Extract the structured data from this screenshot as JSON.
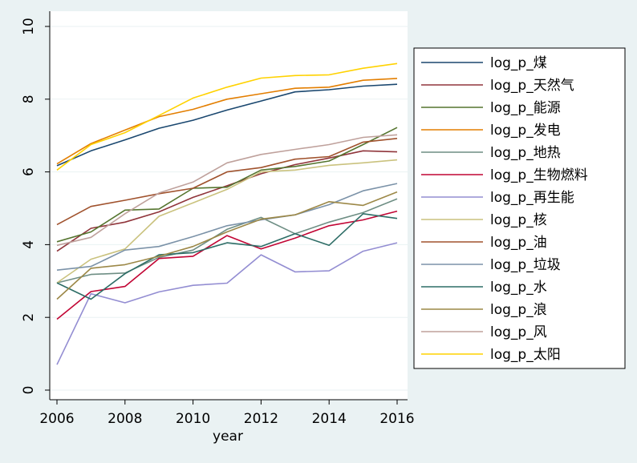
{
  "chart_data": {
    "type": "line",
    "xlabel": "year",
    "ylabel": "",
    "xlim": [
      2006,
      2016
    ],
    "ylim": [
      0,
      10
    ],
    "x_ticks": [
      2006,
      2008,
      2010,
      2012,
      2014,
      2016
    ],
    "y_ticks": [
      0,
      2,
      4,
      6,
      8,
      10
    ],
    "grid": "horizontal",
    "legend_placement": "right",
    "x": [
      2006,
      2007,
      2008,
      2009,
      2010,
      2011,
      2012,
      2013,
      2014,
      2015,
      2016
    ],
    "series": [
      {
        "name": "log_p_煤",
        "color": "#1a476f",
        "values": [
          6.17,
          6.58,
          6.88,
          7.2,
          7.42,
          7.7,
          7.95,
          8.2,
          8.26,
          8.36,
          8.41
        ]
      },
      {
        "name": "log_p_天然气",
        "color": "#90353b",
        "values": [
          3.82,
          4.45,
          4.62,
          4.9,
          5.3,
          5.62,
          5.95,
          6.2,
          6.38,
          6.58,
          6.55
        ]
      },
      {
        "name": "log_p_能源",
        "color": "#55752f",
        "values": [
          4.08,
          4.35,
          4.95,
          4.98,
          5.55,
          5.58,
          6.05,
          6.15,
          6.3,
          6.75,
          7.22
        ]
      },
      {
        "name": "log_p_发电",
        "color": "#e37e00",
        "values": [
          6.22,
          6.78,
          7.15,
          7.52,
          7.72,
          8.0,
          8.15,
          8.3,
          8.33,
          8.52,
          8.57
        ]
      },
      {
        "name": "log_p_地热",
        "color": "#6e8e84",
        "values": [
          2.95,
          3.18,
          3.22,
          3.65,
          3.85,
          4.42,
          4.75,
          4.3,
          4.62,
          4.88,
          5.26
        ]
      },
      {
        "name": "log_p_生物燃料",
        "color": "#c10534",
        "values": [
          1.95,
          2.71,
          2.85,
          3.62,
          3.68,
          4.25,
          3.88,
          4.18,
          4.52,
          4.68,
          4.92
        ]
      },
      {
        "name": "log_p_再生能",
        "color": "#938dd2",
        "values": [
          0.7,
          2.65,
          2.4,
          2.7,
          2.88,
          2.94,
          3.72,
          3.25,
          3.28,
          3.82,
          4.05
        ]
      },
      {
        "name": "log_p_核",
        "color": "#cac27e",
        "values": [
          2.95,
          3.6,
          3.88,
          4.78,
          5.15,
          5.52,
          6.0,
          6.05,
          6.18,
          6.25,
          6.33
        ]
      },
      {
        "name": "log_p_油",
        "color": "#a0522d",
        "values": [
          4.55,
          5.05,
          5.22,
          5.4,
          5.55,
          6.0,
          6.12,
          6.35,
          6.42,
          6.82,
          6.92
        ]
      },
      {
        "name": "log_p_垃圾",
        "color": "#7b92a8",
        "values": [
          3.3,
          3.4,
          3.85,
          3.95,
          4.22,
          4.52,
          4.68,
          4.82,
          5.1,
          5.48,
          5.68
        ]
      },
      {
        "name": "log_p_水",
        "color": "#2d6d66",
        "values": [
          2.95,
          2.5,
          3.2,
          3.72,
          3.78,
          4.05,
          3.95,
          4.3,
          3.98,
          4.85,
          4.72
        ]
      },
      {
        "name": "log_p_浪",
        "color": "#9c8847",
        "values": [
          2.5,
          3.35,
          3.45,
          3.68,
          3.95,
          4.35,
          4.7,
          4.82,
          5.18,
          5.08,
          5.45
        ]
      },
      {
        "name": "log_p_风",
        "color": "#bfa19c",
        "values": [
          3.98,
          4.2,
          4.85,
          5.42,
          5.72,
          6.25,
          6.48,
          6.62,
          6.75,
          6.95,
          7.02
        ]
      },
      {
        "name": "log_p_太阳",
        "color": "#ffd200",
        "values": [
          6.05,
          6.75,
          7.08,
          7.55,
          8.03,
          8.33,
          8.58,
          8.65,
          8.67,
          8.85,
          8.98
        ]
      }
    ]
  }
}
